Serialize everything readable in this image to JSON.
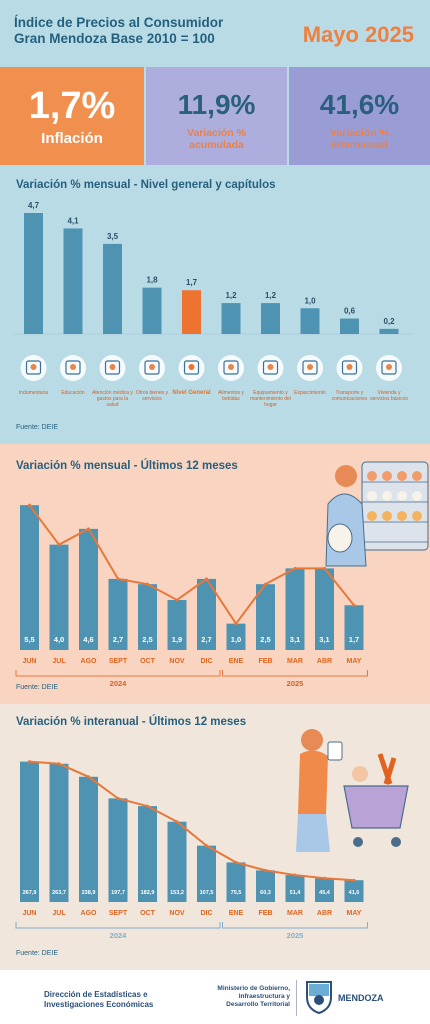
{
  "header": {
    "title_line1": "Índice de Precios al Consumidor",
    "title_line2": "Gran Mendoza Base 2010 = 100",
    "month": "Mayo 2025"
  },
  "kpis": [
    {
      "value": "1,7%",
      "label": "Inflación"
    },
    {
      "value": "11,9%",
      "label_line1": "Variación %",
      "label_line2": "acumulada"
    },
    {
      "value": "41,6%",
      "label_line1": "Variación %",
      "label_line2": "internanual"
    }
  ],
  "colors": {
    "bar": "#4f93b3",
    "highlight": "#ee7230",
    "line": "#e8773a",
    "axis_text": "#e0641f"
  },
  "chart_data": [
    {
      "type": "bar",
      "title": "Variación % mensual - Nivel general y capítulos",
      "categories": [
        "Indumentaria",
        "Educación",
        "Atención médica y gastos para la salud",
        "Otros bienes y servicios",
        "Nivel General",
        "Alimentos y bebidas",
        "Equipamiento y mantenimiento del hogar",
        "Esparcimiento",
        "Transporte y comunicaciones",
        "Vivienda y servicios básicos"
      ],
      "values": [
        4.7,
        4.1,
        3.5,
        1.8,
        1.7,
        1.2,
        1.2,
        1.0,
        0.6,
        0.2
      ],
      "value_labels": [
        "4,7",
        "4,1",
        "3,5",
        "1,8",
        "1,7",
        "1,2",
        "1,2",
        "1,0",
        "0,6",
        "0,2"
      ],
      "icons": [
        "tshirt-icon",
        "school-icon",
        "thermometer-icon",
        "scissors-icon",
        "cart-icon",
        "groceries-icon",
        "washer-icon",
        "popcorn-icon",
        "bus-icon",
        "bulb-icon"
      ],
      "highlight_index": 4,
      "source": "Fuente: DEIE"
    },
    {
      "type": "bar",
      "title": "Variación % mensual - Últimos 12 meses",
      "categories": [
        "JUN",
        "JUL",
        "AGO",
        "SEPT",
        "OCT",
        "NOV",
        "DIC",
        "ENE",
        "FEB",
        "MAR",
        "ABR",
        "MAY"
      ],
      "values": [
        5.5,
        4.0,
        4.6,
        2.7,
        2.5,
        1.9,
        2.7,
        1.0,
        2.5,
        3.1,
        3.1,
        1.7
      ],
      "value_labels": [
        "5,5",
        "4,0",
        "4,6",
        "2,7",
        "2,5",
        "1,9",
        "2,7",
        "1,0",
        "2,5",
        "3,1",
        "3,1",
        "1,7"
      ],
      "year_groups": [
        {
          "label": "2024",
          "from": 0,
          "to": 6
        },
        {
          "label": "2025",
          "from": 7,
          "to": 11
        }
      ],
      "trend_line": true,
      "ylim": [
        0,
        6
      ],
      "source": "Fuente: DEIE"
    },
    {
      "type": "bar",
      "title": "Variación % interanual - Últimos 12 meses",
      "categories": [
        "JUN",
        "JUL",
        "AGO",
        "SEPT",
        "OCT",
        "NOV",
        "DIC",
        "ENE",
        "FEB",
        "MAR",
        "ABR",
        "MAY"
      ],
      "values": [
        267.9,
        263.7,
        238.9,
        197.7,
        182.9,
        153.2,
        107.5,
        75.5,
        60.3,
        51.4,
        45.4,
        41.6
      ],
      "value_labels": [
        "267,9",
        "263,7",
        "238,9",
        "197,7",
        "182,9",
        "153,2",
        "107,5",
        "75,5",
        "60,3",
        "51,4",
        "45,4",
        "41,6"
      ],
      "year_groups": [
        {
          "label": "2024",
          "from": 0,
          "to": 6
        },
        {
          "label": "2025",
          "from": 7,
          "to": 11
        }
      ],
      "trend_line": true,
      "ylim": [
        0,
        290
      ],
      "source": "Fuente: DEIE"
    }
  ],
  "footer": {
    "org_line1": "Dirección de Estadísticas e",
    "org_line2": "Investigaciones Económicas",
    "ministry_line1": "Ministerio de Gobierno,",
    "ministry_line2": "Infraestructura y",
    "ministry_line3": "Desarrollo Territorial",
    "province": "MENDOZA"
  }
}
